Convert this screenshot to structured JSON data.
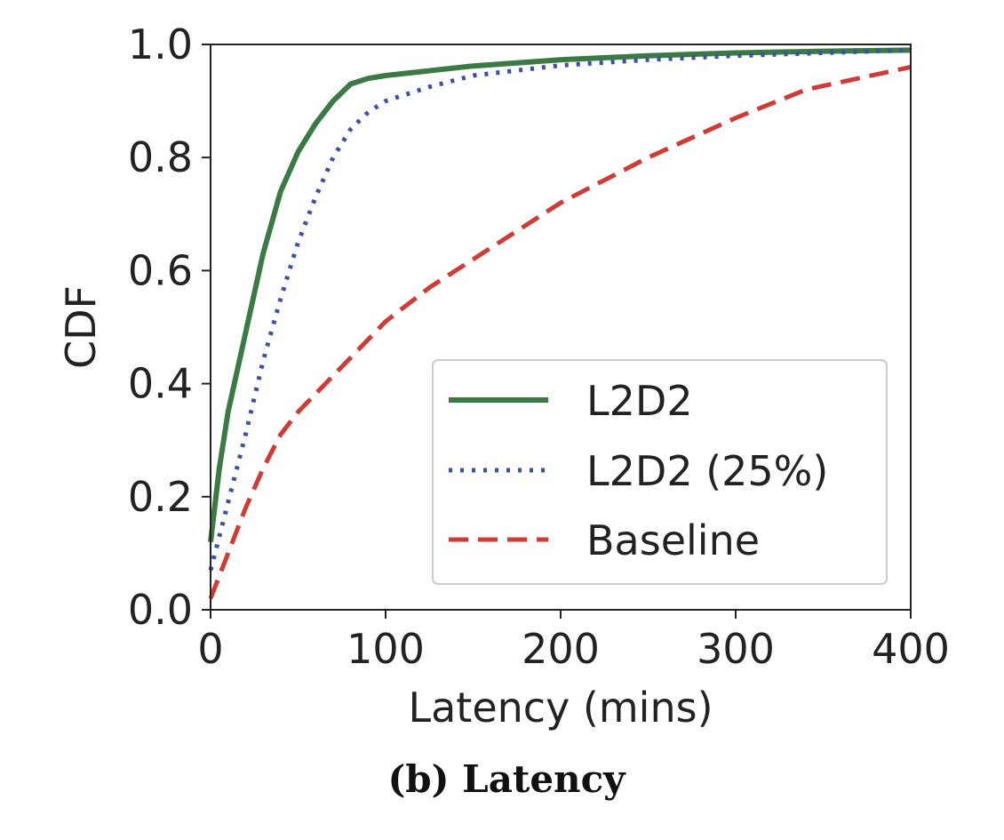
{
  "caption": "(b) Latency",
  "chart_data": {
    "type": "line",
    "title": "",
    "xlabel": "Latency (mins)",
    "ylabel": "CDF",
    "xlim": [
      0,
      400
    ],
    "ylim": [
      0.0,
      1.0
    ],
    "xticks": [
      "0",
      "100",
      "200",
      "300",
      "400"
    ],
    "yticks": [
      "0.0",
      "0.2",
      "0.4",
      "0.6",
      "0.8",
      "1.0"
    ],
    "grid": false,
    "legend_position": "lower-right",
    "series": [
      {
        "name": "L2D2",
        "style": "solid",
        "color": "#3b7a44",
        "x": [
          0,
          5,
          10,
          20,
          30,
          40,
          50,
          60,
          70,
          80,
          90,
          100,
          150,
          200,
          250,
          300,
          350,
          400
        ],
        "y": [
          0.12,
          0.25,
          0.35,
          0.49,
          0.63,
          0.74,
          0.81,
          0.86,
          0.9,
          0.93,
          0.94,
          0.945,
          0.962,
          0.973,
          0.98,
          0.985,
          0.988,
          0.99
        ]
      },
      {
        "name": "L2D2 (25%)",
        "style": "dotted",
        "color": "#3b51a3",
        "x": [
          0,
          10,
          20,
          30,
          40,
          50,
          60,
          70,
          80,
          90,
          100,
          125,
          150,
          200,
          250,
          300,
          350,
          400
        ],
        "y": [
          0.07,
          0.19,
          0.31,
          0.44,
          0.55,
          0.65,
          0.73,
          0.8,
          0.85,
          0.88,
          0.9,
          0.925,
          0.945,
          0.963,
          0.973,
          0.98,
          0.985,
          0.99
        ]
      },
      {
        "name": "Baseline",
        "style": "dashed",
        "color": "#d03b35",
        "x": [
          0,
          10,
          20,
          30,
          40,
          50,
          75,
          100,
          125,
          150,
          200,
          250,
          300,
          340,
          370,
          400
        ],
        "y": [
          0.02,
          0.1,
          0.18,
          0.25,
          0.31,
          0.35,
          0.43,
          0.51,
          0.57,
          0.62,
          0.72,
          0.8,
          0.87,
          0.92,
          0.94,
          0.96
        ]
      }
    ]
  }
}
